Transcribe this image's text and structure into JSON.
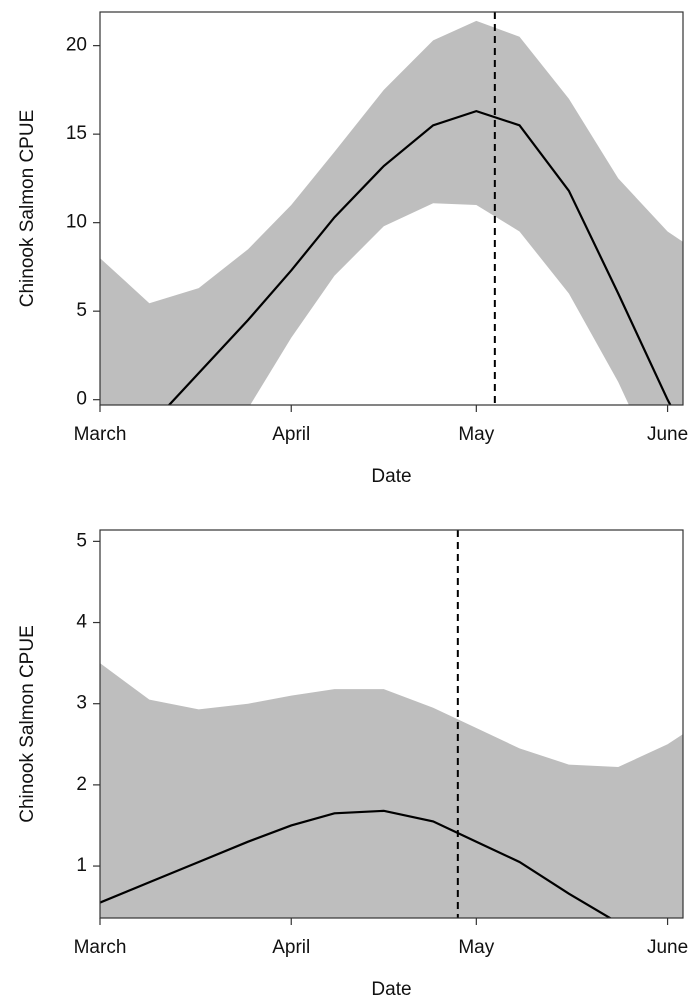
{
  "chart_data": [
    {
      "type": "line",
      "ylabel": "Chinook Salmon CPUE",
      "xlabel": "Date",
      "x": [
        0,
        8,
        16,
        24,
        31,
        38,
        46,
        54,
        61,
        68,
        76,
        84,
        92,
        95
      ],
      "values": [
        -4,
        -1.5,
        1.5,
        4.5,
        7.3,
        10.3,
        13.2,
        15.5,
        16.3,
        15.5,
        11.8,
        6,
        0,
        -2
      ],
      "band": {
        "upper": [
          8.0,
          5.45,
          6.3,
          8.5,
          11.0,
          14,
          17.5,
          20.3,
          21.4,
          20.5,
          17,
          12.5,
          9.5,
          8.8
        ],
        "lower": [
          -6,
          -5,
          -3.5,
          -0.5,
          3.5,
          7,
          9.8,
          11.1,
          11.0,
          9.5,
          6,
          1,
          -5,
          -7
        ]
      },
      "color": "#000000",
      "band_color": "#bebebe",
      "vline": 64,
      "xlim": [
        0,
        94.5
      ],
      "ylim": [
        -0.3,
        21.9
      ],
      "xticks": [
        {
          "value": 0,
          "label": "March"
        },
        {
          "value": 31,
          "label": "April"
        },
        {
          "value": 61,
          "label": "May"
        },
        {
          "value": 92,
          "label": "June"
        }
      ],
      "yticks": [
        0,
        5,
        10,
        15,
        20
      ]
    },
    {
      "type": "line",
      "ylabel": "Chinook Salmon CPUE",
      "xlabel": "Date",
      "x": [
        0,
        8,
        16,
        24,
        31,
        38,
        46,
        54,
        61,
        68,
        76,
        84,
        92,
        95
      ],
      "values": [
        0.55,
        0.8,
        1.05,
        1.3,
        1.5,
        1.65,
        1.68,
        1.55,
        1.3,
        1.05,
        0.66,
        0.3,
        -0.1,
        -0.25
      ],
      "band": {
        "upper": [
          3.5,
          3.05,
          2.93,
          3.0,
          3.1,
          3.18,
          3.18,
          2.95,
          2.7,
          2.45,
          2.25,
          2.22,
          2.5,
          2.65
        ],
        "lower": [
          0.1,
          0.1,
          0.1,
          0.1,
          0.1,
          0.1,
          0.1,
          0.1,
          0.1,
          0.1,
          0.1,
          0.1,
          0.1,
          0.1
        ]
      },
      "color": "#000000",
      "band_color": "#bebebe",
      "vline": 58,
      "xlim": [
        0,
        94.5
      ],
      "ylim": [
        0.36,
        5.14
      ],
      "xticks": [
        {
          "value": 0,
          "label": "March"
        },
        {
          "value": 31,
          "label": "April"
        },
        {
          "value": 61,
          "label": "May"
        },
        {
          "value": 92,
          "label": "June"
        }
      ],
      "yticks": [
        1,
        2,
        3,
        4,
        5
      ]
    }
  ]
}
